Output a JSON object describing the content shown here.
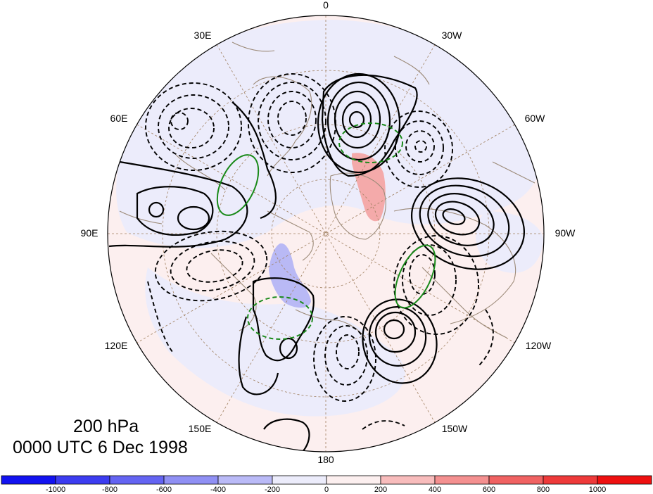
{
  "map": {
    "projection": "north-polar-stereographic",
    "level": "200 hPa",
    "valid_time": "0000 UTC 6 Dec 1998",
    "longitude_labels": [
      "0",
      "30W",
      "60W",
      "90W",
      "120W",
      "150W",
      "180",
      "150E",
      "120E",
      "90E",
      "60E",
      "30E"
    ],
    "colors": {
      "positive_contour": "#000000",
      "negative_contour": "#000000",
      "highlight_contour": "#1a8a1a",
      "coastline": "#9c8a78",
      "graticule": "#a08060",
      "shade_weak_negative": "#ececfb",
      "shade_weak_positive": "#fcefef",
      "shade_blue": "#b9b9f5",
      "shade_red": "#f4aaaa"
    }
  },
  "colorbar": {
    "ticks": [
      "-1000",
      "-800",
      "-600",
      "-400",
      "-200",
      "0",
      "200",
      "400",
      "600",
      "800",
      "1000"
    ],
    "colors": [
      "#1212f0",
      "#3c3cf0",
      "#6464f2",
      "#9090f4",
      "#babaf7",
      "#ececfb",
      "#fcefef",
      "#f8bcbc",
      "#f49090",
      "#f06262",
      "#ee3a3a",
      "#ee1010"
    ]
  }
}
